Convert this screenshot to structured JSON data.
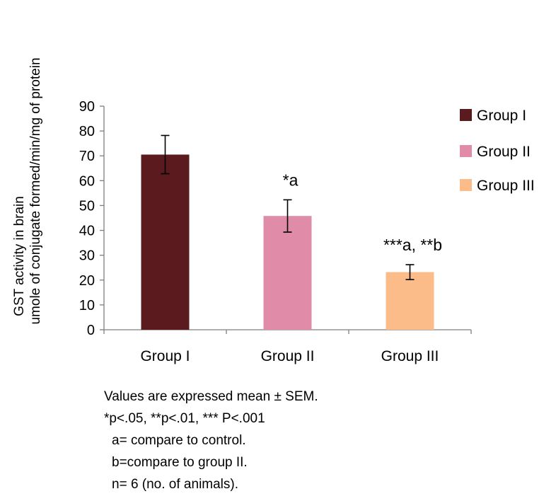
{
  "chart_data": {
    "type": "bar",
    "title": "",
    "xlabel": "",
    "ylabel_lines": [
      "umole of conjugate formed/min/mg of protein",
      "GST activity in brain"
    ],
    "categories": [
      "Group I",
      "Group II",
      "Group III"
    ],
    "values": [
      70.5,
      45.8,
      23.2
    ],
    "errors": [
      7.7,
      6.5,
      3.0
    ],
    "colors": [
      "#5a1a1e",
      "#e08ca8",
      "#fbbc8a"
    ],
    "annotations": [
      "",
      "*a",
      "***a, **b"
    ],
    "ylim": [
      0,
      90
    ],
    "yticks": [
      0,
      10,
      20,
      30,
      40,
      50,
      60,
      70,
      80,
      90
    ],
    "grid": false,
    "legend": {
      "position": "right",
      "entries": [
        "Group I",
        "Group II",
        "Group III"
      ]
    }
  },
  "notes": [
    "Values are expressed mean ± SEM.",
    "*p<.05, **p<.01, *** P<.001",
    "a= compare to control.",
    "b=compare to group II.",
    "n= 6 (no. of animals)."
  ]
}
